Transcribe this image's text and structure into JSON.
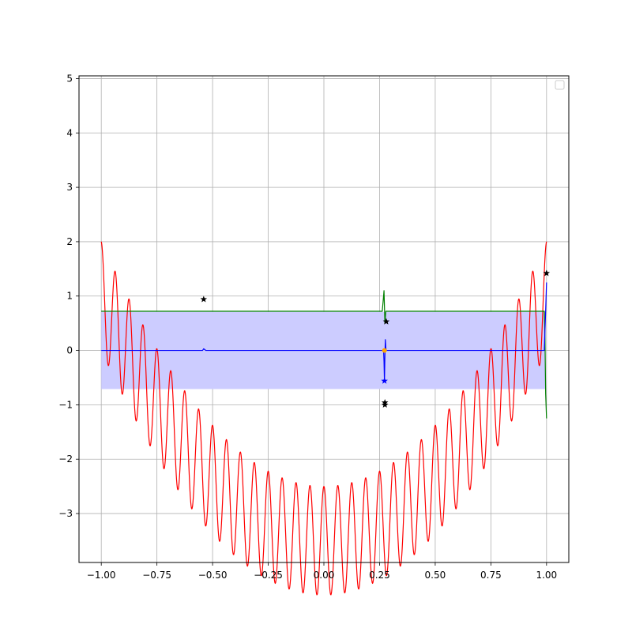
{
  "chart_data": {
    "type": "line",
    "title": "",
    "xlabel": "",
    "ylabel": "",
    "xlim": [
      -1.1,
      1.1
    ],
    "ylim": [
      -3.9,
      5.05
    ],
    "grid": true,
    "legend": {
      "placement": "top-right",
      "entries": []
    },
    "x_ticks": [
      -1.0,
      -0.75,
      -0.5,
      -0.25,
      0.0,
      0.25,
      0.5,
      0.75,
      1.0
    ],
    "x_tick_labels": [
      "−1.00",
      "−0.75",
      "−0.50",
      "−0.25",
      "0.00",
      "0.25",
      "0.50",
      "0.75",
      "1.00"
    ],
    "y_ticks": [
      -3,
      -2,
      -1,
      0,
      1,
      2,
      3,
      4,
      5
    ],
    "y_tick_labels": [
      "−3",
      "−2",
      "−1",
      "0",
      "1",
      "2",
      "3",
      "4",
      "5"
    ],
    "band": {
      "x": [
        -1.0,
        0.995
      ],
      "y": [
        -0.71,
        0.71
      ],
      "color": "#ccccff"
    },
    "series": [
      {
        "color": "#ff0000",
        "function": "4.5*x^2 + cos(32*pi*x) - 3.5",
        "x_range": [
          -1.0,
          1.0
        ],
        "samples": 1200
      },
      {
        "color": "#008000",
        "x": [
          -1.0,
          0.262,
          0.266,
          0.27,
          0.274,
          0.278,
          0.282,
          0.99,
          0.993,
          0.996,
          1.0
        ],
        "y": [
          0.72,
          0.72,
          0.9,
          1.1,
          0.5,
          0.72,
          0.72,
          0.72,
          0.2,
          -0.8,
          -1.25
        ]
      },
      {
        "color": "#0000ff",
        "x": [
          -1.0,
          -0.545,
          -0.54,
          -0.53,
          0.268,
          0.27,
          0.272,
          0.274,
          0.276,
          0.278,
          0.28,
          0.99,
          0.995,
          1.0
        ],
        "y": [
          0.0,
          0.0,
          0.03,
          0.0,
          0.0,
          -0.2,
          -0.57,
          -0.1,
          0.2,
          0.05,
          0.0,
          0.0,
          0.6,
          1.25
        ]
      }
    ],
    "markers": [
      {
        "x": -0.54,
        "y": 0.94,
        "color": "#000000",
        "shape": "star"
      },
      {
        "x": 0.28,
        "y": 0.53,
        "color": "#000000",
        "shape": "star"
      },
      {
        "x": 0.274,
        "y": -0.96,
        "color": "#000000",
        "shape": "star"
      },
      {
        "x": 0.274,
        "y": -1.0,
        "color": "#000000",
        "shape": "star"
      },
      {
        "x": 1.0,
        "y": 1.42,
        "color": "#000000",
        "shape": "star"
      },
      {
        "x": 0.272,
        "y": -0.56,
        "color": "#0000ff",
        "shape": "star"
      },
      {
        "x": 0.272,
        "y": 0.0,
        "color": "#ffa500",
        "shape": "dot"
      }
    ]
  }
}
